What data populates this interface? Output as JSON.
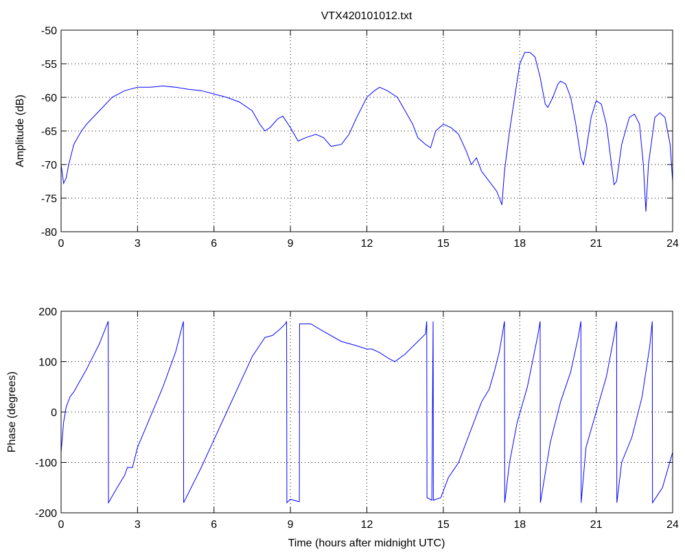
{
  "chart_data": [
    {
      "type": "line",
      "title": "VTX420101012.txt",
      "ylabel": "Amplitude (dB)",
      "x": [
        0,
        0.1,
        0.2,
        0.3,
        0.5,
        0.8,
        1,
        1.5,
        2,
        2.5,
        3,
        3.5,
        4,
        4.5,
        5,
        5.5,
        6,
        6.5,
        7,
        7.5,
        7.8,
        8,
        8.2,
        8.5,
        8.7,
        9,
        9.3,
        9.6,
        10,
        10.3,
        10.6,
        11,
        11.3,
        11.6,
        12,
        12.3,
        12.5,
        12.8,
        13.2,
        13.5,
        13.8,
        14,
        14.3,
        14.5,
        14.7,
        15,
        15.3,
        15.6,
        15.9,
        16.1,
        16.3,
        16.5,
        16.7,
        16.9,
        17.1,
        17.2,
        17.3,
        17.4,
        17.6,
        17.8,
        18,
        18.2,
        18.4,
        18.6,
        18.8,
        19,
        19.1,
        19.3,
        19.5,
        19.6,
        19.8,
        20,
        20.2,
        20.4,
        20.5,
        20.6,
        20.8,
        21,
        21.2,
        21.4,
        21.6,
        21.7,
        21.8,
        22,
        22.3,
        22.5,
        22.7,
        22.85,
        22.95,
        23.05,
        23.3,
        23.5,
        23.7,
        23.9,
        24
      ],
      "series": [
        {
          "color": "#0000ff",
          "values": [
            -70,
            -72.8,
            -72,
            -70,
            -67,
            -65,
            -64,
            -62,
            -60,
            -59,
            -58.5,
            -58.5,
            -58.3,
            -58.5,
            -58.8,
            -59,
            -59.5,
            -60,
            -60.7,
            -62,
            -64,
            -65,
            -64.5,
            -63.2,
            -62.8,
            -64.5,
            -66.5,
            -66,
            -65.5,
            -66,
            -67.3,
            -67,
            -65.5,
            -63,
            -60,
            -59,
            -58.5,
            -59,
            -60,
            -62,
            -64,
            -66,
            -67,
            -67.5,
            -65,
            -64,
            -64.5,
            -65.5,
            -68,
            -70,
            -69,
            -71,
            -72,
            -73,
            -74,
            -75,
            -76,
            -71,
            -65,
            -60,
            -55,
            -53.3,
            -53.3,
            -54,
            -57,
            -61,
            -61.5,
            -60,
            -58,
            -57.6,
            -58,
            -60,
            -64,
            -69,
            -70,
            -68,
            -63,
            -60.5,
            -61,
            -64,
            -70,
            -73,
            -72.5,
            -67,
            -63,
            -62.5,
            -64,
            -70,
            -77,
            -70,
            -63,
            -62.3,
            -63,
            -67,
            -72.5
          ]
        }
      ],
      "xlim": [
        0,
        24
      ],
      "xticks": [
        0,
        3,
        6,
        9,
        12,
        15,
        18,
        21,
        24
      ],
      "ylim": [
        -80,
        -50
      ],
      "yticks": [
        -80,
        -75,
        -70,
        -65,
        -60,
        -55,
        -50
      ],
      "grid": true
    },
    {
      "type": "line",
      "xlabel": "Time (hours after midnight UTC)",
      "ylabel": "Phase (degrees)",
      "x": [
        0,
        0.1,
        0.2,
        0.35,
        0.5,
        1,
        1.5,
        1.85,
        1.86,
        2.2,
        2.5,
        2.6,
        2.8,
        3,
        3.5,
        4,
        4.5,
        4.8,
        4.81,
        5.5,
        6,
        6.5,
        7,
        7.5,
        8,
        8.3,
        8.6,
        8.8,
        8.85,
        8.86,
        9,
        9.2,
        9.35,
        9.36,
        9.8,
        10.3,
        11,
        11.5,
        12,
        12.2,
        12.5,
        12.9,
        13.1,
        13.5,
        14,
        14.3,
        14.35,
        14.36,
        14.55,
        14.6,
        14.61,
        14.9,
        15.2,
        15.6,
        15.9,
        16.2,
        16.5,
        16.8,
        17,
        17.2,
        17.4,
        17.41,
        17.6,
        17.9,
        18.3,
        18.7,
        18.8,
        18.81,
        19.2,
        19.6,
        20,
        20.3,
        20.4,
        20.41,
        20.6,
        21,
        21.4,
        21.7,
        21.8,
        21.81,
        22,
        22.4,
        22.8,
        23.1,
        23.2,
        23.21,
        23.6,
        24
      ],
      "series": [
        {
          "color": "#0000ff",
          "values": [
            -80,
            -20,
            10,
            30,
            40,
            85,
            135,
            180,
            -180,
            -150,
            -125,
            -110,
            -110,
            -70,
            -10,
            50,
            120,
            180,
            -180,
            -110,
            -55,
            0,
            55,
            110,
            148,
            152,
            165,
            175,
            180,
            -180,
            -173,
            -176,
            -178,
            175,
            175,
            160,
            140,
            133,
            125,
            125,
            118,
            105,
            100,
            115,
            140,
            155,
            180,
            -170,
            -175,
            180,
            -175,
            -170,
            -130,
            -100,
            -60,
            -20,
            20,
            45,
            80,
            120,
            180,
            -180,
            -100,
            -20,
            50,
            150,
            180,
            -180,
            -60,
            20,
            80,
            150,
            180,
            -180,
            -70,
            0,
            70,
            150,
            180,
            -180,
            -100,
            -50,
            30,
            130,
            180,
            -180,
            -150,
            -80
          ]
        }
      ],
      "xlim": [
        0,
        24
      ],
      "xticks": [
        0,
        3,
        6,
        9,
        12,
        15,
        18,
        21,
        24
      ],
      "ylim": [
        -200,
        200
      ],
      "yticks": [
        -200,
        -100,
        0,
        100,
        200
      ],
      "grid": true
    }
  ]
}
